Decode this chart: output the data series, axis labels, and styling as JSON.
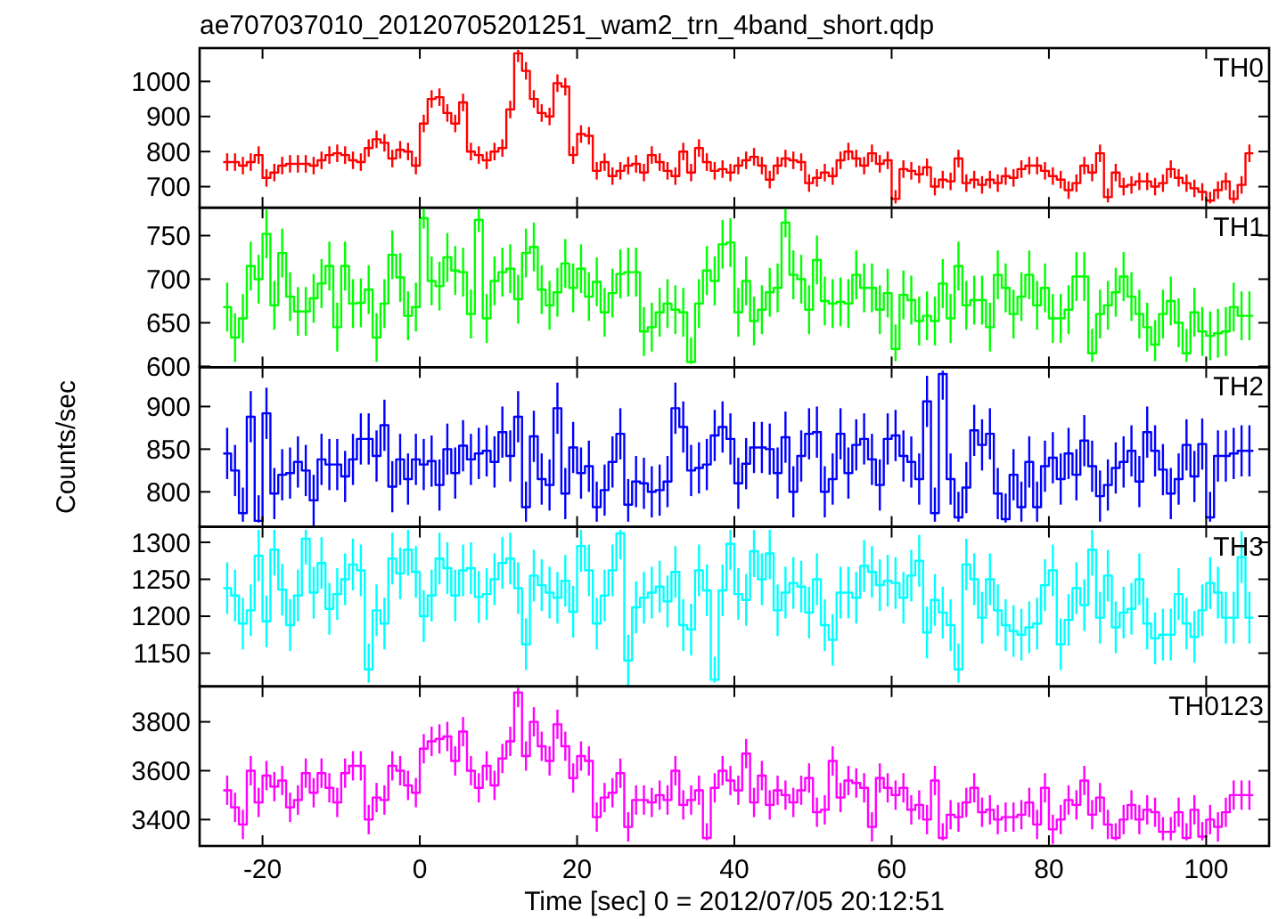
{
  "chart_data": [
    {
      "type": "step",
      "title": "ae707037010_20120705201251_wam2_trn_4band_short.qdp",
      "xlim": [
        -28,
        108
      ],
      "xticks": [
        -20,
        0,
        20,
        40,
        60,
        80,
        100
      ],
      "ylim": [
        640,
        1095
      ],
      "yticks": [
        700,
        800,
        900,
        1000
      ],
      "tick_labels": "y",
      "legend": "top right",
      "x": [
        -24.5,
        -23.5,
        -22.5,
        -21.5,
        -20.5,
        -19.5,
        -18.5,
        -17.5,
        -16.5,
        -15.5,
        -14.5,
        -13.5,
        -12.5,
        -11.5,
        -10.5,
        -9.5,
        -8.5,
        -7.5,
        -6.5,
        -5.5,
        -4.5,
        -3.5,
        -2.5,
        -1.5,
        -0.5,
        0.5,
        1.5,
        2.5,
        3.5,
        4.5,
        5.5,
        6.5,
        7.5,
        8.5,
        9.5,
        10.5,
        11.5,
        12.5,
        13.5,
        14.5,
        15.5,
        16.5,
        17.5,
        18.5,
        19.5,
        20.5,
        21.5,
        22.5,
        23.5,
        24.5,
        25.5,
        26.5,
        27.5,
        28.5,
        29.5,
        30.5,
        31.5,
        32.5,
        33.5,
        34.5,
        35.5,
        36.5,
        37.5,
        38.5,
        39.5,
        40.5,
        41.5,
        42.5,
        43.5,
        44.5,
        45.5,
        46.5,
        47.5,
        48.5,
        49.5,
        50.5,
        51.5,
        52.5,
        53.5,
        54.5,
        55.5,
        56.5,
        57.5,
        58.5,
        59.5,
        60.5,
        61.5,
        62.5,
        63.5,
        64.5,
        65.5,
        66.5,
        67.5,
        68.5,
        69.5,
        70.5,
        71.5,
        72.5,
        73.5,
        74.5,
        75.5,
        76.5,
        77.5,
        78.5,
        79.5,
        80.5,
        81.5,
        82.5,
        83.5,
        84.5,
        85.5,
        86.5,
        87.5,
        88.5,
        89.5,
        90.5,
        91.5,
        92.5,
        93.5,
        94.5,
        95.5,
        96.5,
        97.5,
        98.5,
        99.5,
        100.5,
        101.5,
        102.5,
        103.5,
        104.5,
        105.5
      ],
      "series": [
        {
          "name": "TH0",
          "color": "#ff0000",
          "values": [
            770,
            770,
            760,
            770,
            790,
            725,
            740,
            760,
            765,
            765,
            765,
            760,
            775,
            790,
            795,
            790,
            775,
            770,
            810,
            835,
            825,
            780,
            805,
            800,
            760,
            880,
            950,
            955,
            910,
            880,
            940,
            800,
            790,
            775,
            800,
            810,
            920,
            1080,
            1030,
            950,
            910,
            900,
            995,
            985,
            790,
            850,
            845,
            745,
            770,
            730,
            745,
            760,
            765,
            740,
            790,
            770,
            745,
            730,
            800,
            740,
            810,
            770,
            745,
            750,
            740,
            760,
            775,
            785,
            760,
            720,
            760,
            780,
            775,
            770,
            710,
            725,
            740,
            730,
            775,
            800,
            780,
            760,
            795,
            765,
            775,
            665,
            750,
            745,
            735,
            755,
            700,
            720,
            715,
            780,
            710,
            720,
            705,
            720,
            710,
            730,
            725,
            750,
            760,
            760,
            745,
            730,
            720,
            690,
            710,
            760,
            740,
            795,
            670,
            740,
            700,
            705,
            715,
            715,
            700,
            710,
            750,
            725,
            710,
            695,
            685,
            660,
            690,
            715,
            665,
            705,
            795
          ],
          "errors": [
            25,
            25,
            25,
            25,
            25,
            25,
            25,
            25,
            25,
            25,
            25,
            25,
            25,
            25,
            25,
            25,
            25,
            25,
            25,
            25,
            25,
            25,
            25,
            25,
            25,
            25,
            25,
            25,
            25,
            25,
            25,
            25,
            25,
            25,
            25,
            25,
            25,
            [
              1055,
              1090
            ],
            25,
            25,
            25,
            25,
            25,
            25,
            25,
            25,
            25,
            25,
            25,
            25,
            25,
            25,
            25,
            25,
            25,
            25,
            25,
            25,
            25,
            25,
            25,
            25,
            25,
            25,
            25,
            25,
            25,
            25,
            25,
            25,
            25,
            25,
            25,
            25,
            25,
            25,
            25,
            25,
            25,
            25,
            25,
            25,
            25,
            25,
            25,
            [
              652,
              690
            ],
            25,
            25,
            25,
            25,
            25,
            25,
            25,
            25,
            25,
            25,
            25,
            25,
            25,
            25,
            25,
            25,
            25,
            25,
            25,
            25,
            25,
            25,
            25,
            25,
            25,
            25,
            [
              655,
              695
            ],
            25,
            25,
            25,
            25,
            25,
            25,
            25,
            25,
            25,
            25,
            25,
            25,
            [
              652,
              685
            ],
            25,
            25,
            [
              652,
              690
            ],
            25,
            25
          ]
        }
      ]
    },
    {
      "type": "step",
      "xlim": [
        -28,
        108
      ],
      "xticks": [
        -20,
        0,
        20,
        40,
        60,
        80,
        100
      ],
      "ylim": [
        599,
        782
      ],
      "yticks": [
        600,
        650,
        700,
        750
      ],
      "tick_labels": "y",
      "legend": "top right",
      "x": [
        -24.5,
        -23.5,
        -22.5,
        -21.5,
        -20.5,
        -19.5,
        -18.5,
        -17.5,
        -16.5,
        -15.5,
        -14.5,
        -13.5,
        -12.5,
        -11.5,
        -10.5,
        -9.5,
        -8.5,
        -7.5,
        -6.5,
        -5.5,
        -4.5,
        -3.5,
        -2.5,
        -1.5,
        -0.5,
        0.5,
        1.5,
        2.5,
        3.5,
        4.5,
        5.5,
        6.5,
        7.5,
        8.5,
        9.5,
        10.5,
        11.5,
        12.5,
        13.5,
        14.5,
        15.5,
        16.5,
        17.5,
        18.5,
        19.5,
        20.5,
        21.5,
        22.5,
        23.5,
        24.5,
        25.5,
        26.5,
        27.5,
        28.5,
        29.5,
        30.5,
        31.5,
        32.5,
        33.5,
        34.5,
        35.5,
        36.5,
        37.5,
        38.5,
        39.5,
        40.5,
        41.5,
        42.5,
        43.5,
        44.5,
        45.5,
        46.5,
        47.5,
        48.5,
        49.5,
        50.5,
        51.5,
        52.5,
        53.5,
        54.5,
        55.5,
        56.5,
        57.5,
        58.5,
        59.5,
        60.5,
        61.5,
        62.5,
        63.5,
        64.5,
        65.5,
        66.5,
        67.5,
        68.5,
        69.5,
        70.5,
        71.5,
        72.5,
        73.5,
        74.5,
        75.5,
        76.5,
        77.5,
        78.5,
        79.5,
        80.5,
        81.5,
        82.5,
        83.5,
        84.5,
        85.5,
        86.5,
        87.5,
        88.5,
        89.5,
        90.5,
        91.5,
        92.5,
        93.5,
        94.5,
        95.5,
        96.5,
        97.5,
        98.5,
        99.5,
        100.5,
        101.5,
        102.5,
        103.5,
        104.5,
        105.5
      ],
      "series": [
        {
          "name": "TH1",
          "color": "#00ff00",
          "values": [
            668,
            633,
            655,
            715,
            700,
            752,
            670,
            730,
            680,
            663,
            663,
            678,
            695,
            715,
            645,
            715,
            672,
            673,
            688,
            633,
            672,
            728,
            702,
            658,
            668,
            770,
            698,
            692,
            725,
            710,
            708,
            660,
            768,
            655,
            698,
            708,
            712,
            677,
            730,
            737,
            688,
            670,
            685,
            718,
            690,
            712,
            680,
            697,
            662,
            684,
            706,
            708,
            708,
            640,
            645,
            662,
            672,
            665,
            662,
            605,
            672,
            710,
            698,
            740,
            742,
            662,
            698,
            652,
            665,
            685,
            690,
            765,
            705,
            700,
            665,
            722,
            675,
            672,
            674,
            672,
            705,
            690,
            690,
            665,
            684,
            620,
            682,
            676,
            652,
            658,
            652,
            695,
            655,
            715,
            670,
            676,
            676,
            645,
            705,
            690,
            660,
            680,
            705,
            670,
            690,
            655,
            655,
            665,
            703,
            703,
            615,
            660,
            670,
            685,
            703,
            680,
            660,
            645,
            625,
            660,
            675,
            650,
            615,
            662,
            640,
            635,
            638,
            640,
            668,
            658,
            658
          ],
          "errors": [
            28,
            28,
            28,
            28,
            28,
            28,
            28,
            28,
            28,
            28,
            28,
            28,
            28,
            28,
            28,
            28,
            28,
            28,
            28,
            28,
            28,
            28,
            28,
            28,
            28,
            12,
            28,
            28,
            28,
            28,
            28,
            28,
            14,
            28,
            28,
            28,
            28,
            28,
            28,
            28,
            28,
            28,
            28,
            28,
            28,
            28,
            28,
            28,
            28,
            28,
            28,
            28,
            28,
            28,
            28,
            28,
            28,
            28,
            28,
            [
              603,
              633
            ],
            28,
            28,
            28,
            28,
            28,
            28,
            28,
            28,
            28,
            28,
            28,
            17,
            28,
            28,
            28,
            28,
            28,
            28,
            28,
            28,
            28,
            28,
            28,
            28,
            28,
            [
              606,
              648
            ],
            28,
            28,
            28,
            28,
            28,
            28,
            28,
            28,
            28,
            28,
            28,
            28,
            28,
            28,
            28,
            28,
            28,
            28,
            28,
            28,
            28,
            28,
            28,
            28,
            [
              605,
              643
            ],
            28,
            28,
            28,
            28,
            28,
            28,
            28,
            [
              606,
              653
            ],
            28,
            28,
            28,
            [
              605,
              643
            ],
            28,
            28,
            28,
            28,
            28,
            28,
            28,
            28
          ]
        }
      ]
    },
    {
      "type": "step",
      "ylabel": "Counts/sec",
      "xlim": [
        -28,
        108
      ],
      "xticks": [
        -20,
        0,
        20,
        40,
        60,
        80,
        100
      ],
      "ylim": [
        759,
        946
      ],
      "yticks": [
        800,
        850,
        900
      ],
      "tick_labels": "y",
      "legend": "top right",
      "x": [
        -24.5,
        -23.5,
        -22.5,
        -21.5,
        -20.5,
        -19.5,
        -18.5,
        -17.5,
        -16.5,
        -15.5,
        -14.5,
        -13.5,
        -12.5,
        -11.5,
        -10.5,
        -9.5,
        -8.5,
        -7.5,
        -6.5,
        -5.5,
        -4.5,
        -3.5,
        -2.5,
        -1.5,
        -0.5,
        0.5,
        1.5,
        2.5,
        3.5,
        4.5,
        5.5,
        6.5,
        7.5,
        8.5,
        9.5,
        10.5,
        11.5,
        12.5,
        13.5,
        14.5,
        15.5,
        16.5,
        17.5,
        18.5,
        19.5,
        20.5,
        21.5,
        22.5,
        23.5,
        24.5,
        25.5,
        26.5,
        27.5,
        28.5,
        29.5,
        30.5,
        31.5,
        32.5,
        33.5,
        34.5,
        35.5,
        36.5,
        37.5,
        38.5,
        39.5,
        40.5,
        41.5,
        42.5,
        43.5,
        44.5,
        45.5,
        46.5,
        47.5,
        48.5,
        49.5,
        50.5,
        51.5,
        52.5,
        53.5,
        54.5,
        55.5,
        56.5,
        57.5,
        58.5,
        59.5,
        60.5,
        61.5,
        62.5,
        63.5,
        64.5,
        65.5,
        66.5,
        67.5,
        68.5,
        69.5,
        70.5,
        71.5,
        72.5,
        73.5,
        74.5,
        75.5,
        76.5,
        77.5,
        78.5,
        79.5,
        80.5,
        81.5,
        82.5,
        83.5,
        84.5,
        85.5,
        86.5,
        87.5,
        88.5,
        89.5,
        90.5,
        91.5,
        92.5,
        93.5,
        94.5,
        95.5,
        96.5,
        97.5,
        98.5,
        99.5,
        100.5,
        101.5,
        102.5,
        103.5,
        104.5,
        105.5
      ],
      "series": [
        {
          "name": "TH2",
          "color": "#0000ff",
          "values": [
            845,
            825,
            775,
            888,
            766,
            892,
            798,
            820,
            822,
            835,
            825,
            790,
            838,
            832,
            832,
            818,
            838,
            862,
            862,
            842,
            878,
            806,
            838,
            815,
            838,
            832,
            836,
            808,
            850,
            822,
            854,
            838,
            845,
            848,
            835,
            870,
            842,
            888,
            782,
            865,
            815,
            808,
            898,
            798,
            852,
            822,
            830,
            782,
            802,
            835,
            868,
            785,
            812,
            810,
            800,
            802,
            812,
            898,
            876,
            825,
            828,
            832,
            866,
            876,
            862,
            810,
            833,
            852,
            852,
            850,
            822,
            864,
            800,
            842,
            868,
            870,
            800,
            815,
            868,
            822,
            855,
            862,
            838,
            808,
            862,
            866,
            842,
            835,
            815,
            906,
            775,
            938,
            815,
            770,
            805,
            872,
            855,
            868,
            798,
            768,
            820,
            782,
            835,
            782,
            830,
            840,
            815,
            845,
            820,
            860,
            830,
            795,
            808,
            828,
            835,
            848,
            812,
            870,
            848,
            826,
            798,
            815,
            855,
            818,
            856,
            770,
            842,
            842,
            845,
            848,
            848
          ],
          "errors": [
            30,
            30,
            [
              765,
              805
            ],
            30,
            [
              764,
              796
            ],
            30,
            30,
            30,
            30,
            30,
            30,
            30,
            30,
            30,
            30,
            30,
            30,
            30,
            30,
            30,
            30,
            30,
            30,
            30,
            30,
            30,
            30,
            30,
            30,
            30,
            30,
            30,
            30,
            30,
            30,
            30,
            30,
            30,
            [
              765,
              812
            ],
            30,
            30,
            30,
            30,
            30,
            30,
            30,
            30,
            [
              765,
              812
            ],
            30,
            30,
            30,
            [
              765,
              815
            ],
            30,
            30,
            30,
            30,
            30,
            30,
            30,
            30,
            30,
            30,
            30,
            30,
            30,
            30,
            30,
            30,
            30,
            30,
            30,
            30,
            30,
            30,
            30,
            30,
            30,
            30,
            30,
            30,
            30,
            30,
            30,
            30,
            30,
            30,
            30,
            30,
            30,
            30,
            [
              765,
              805
            ],
            [
              908,
              942
            ],
            30,
            [
              765,
              800
            ],
            30,
            30,
            30,
            30,
            30,
            [
              764,
              798
            ],
            30,
            [
              765,
              812
            ],
            30,
            [
              765,
              812
            ],
            30,
            30,
            30,
            30,
            30,
            30,
            30,
            30,
            30,
            30,
            30,
            30,
            30,
            30,
            30,
            30,
            30,
            30,
            30,
            30,
            30,
            [
              765,
              800
            ],
            30,
            30,
            30,
            30,
            30
          ]
        }
      ]
    },
    {
      "type": "step",
      "xlim": [
        -28,
        108
      ],
      "xticks": [
        -20,
        0,
        20,
        40,
        60,
        80,
        100
      ],
      "ylim": [
        1105,
        1321
      ],
      "yticks": [
        1150,
        1200,
        1250,
        1300
      ],
      "tick_labels": "y",
      "legend": "top right",
      "x": [
        -24.5,
        -23.5,
        -22.5,
        -21.5,
        -20.5,
        -19.5,
        -18.5,
        -17.5,
        -16.5,
        -15.5,
        -14.5,
        -13.5,
        -12.5,
        -11.5,
        -10.5,
        -9.5,
        -8.5,
        -7.5,
        -6.5,
        -5.5,
        -4.5,
        -3.5,
        -2.5,
        -1.5,
        -0.5,
        0.5,
        1.5,
        2.5,
        3.5,
        4.5,
        5.5,
        6.5,
        7.5,
        8.5,
        9.5,
        10.5,
        11.5,
        12.5,
        13.5,
        14.5,
        15.5,
        16.5,
        17.5,
        18.5,
        19.5,
        20.5,
        21.5,
        22.5,
        23.5,
        24.5,
        25.5,
        26.5,
        27.5,
        28.5,
        29.5,
        30.5,
        31.5,
        32.5,
        33.5,
        34.5,
        35.5,
        36.5,
        37.5,
        38.5,
        39.5,
        40.5,
        41.5,
        42.5,
        43.5,
        44.5,
        45.5,
        46.5,
        47.5,
        48.5,
        49.5,
        50.5,
        51.5,
        52.5,
        53.5,
        54.5,
        55.5,
        56.5,
        57.5,
        58.5,
        59.5,
        60.5,
        61.5,
        62.5,
        63.5,
        64.5,
        65.5,
        66.5,
        67.5,
        68.5,
        69.5,
        70.5,
        71.5,
        72.5,
        73.5,
        74.5,
        75.5,
        76.5,
        77.5,
        78.5,
        79.5,
        80.5,
        81.5,
        82.5,
        83.5,
        84.5,
        85.5,
        86.5,
        87.5,
        88.5,
        89.5,
        90.5,
        91.5,
        92.5,
        93.5,
        94.5,
        95.5,
        96.5,
        97.5,
        98.5,
        99.5,
        100.5,
        101.5,
        102.5,
        103.5,
        104.5,
        105.5
      ],
      "series": [
        {
          "name": "TH3",
          "color": "#00ffff",
          "values": [
            1238,
            1228,
            1190,
            1208,
            1282,
            1193,
            1290,
            1236,
            1188,
            1228,
            1305,
            1232,
            1272,
            1210,
            1230,
            1250,
            1270,
            1262,
            1128,
            1208,
            1190,
            1278,
            1258,
            1290,
            1260,
            1200,
            1228,
            1278,
            1265,
            1228,
            1262,
            1265,
            1226,
            1230,
            1250,
            1272,
            1278,
            1238,
            1162,
            1255,
            1242,
            1232,
            1225,
            1248,
            1206,
            1295,
            1262,
            1190,
            1228,
            1262,
            1312,
            1140,
            1212,
            1225,
            1232,
            1240,
            1220,
            1260,
            1188,
            1182,
            1262,
            1235,
            1114,
            1235,
            1298,
            1230,
            1222,
            1288,
            1250,
            1285,
            1208,
            1232,
            1245,
            1240,
            1205,
            1250,
            1188,
            1168,
            1232,
            1232,
            1225,
            1268,
            1260,
            1242,
            1248,
            1245,
            1225,
            1255,
            1275,
            1178,
            1222,
            1205,
            1188,
            1128,
            1270,
            1250,
            1198,
            1250,
            1208,
            1188,
            1180,
            1175,
            1185,
            1190,
            1242,
            1262,
            1162,
            1195,
            1238,
            1215,
            1290,
            1198,
            1255,
            1185,
            1205,
            1210,
            1250,
            1190,
            1170,
            1175,
            1175,
            1230,
            1190,
            1172,
            1208,
            1245,
            1232,
            1198,
            1198,
            1280,
            1198
          ],
          "errors": [
            35,
            35,
            35,
            35,
            [
              1247,
              1317
            ],
            35,
            [
              1255,
              1317
            ],
            35,
            35,
            35,
            [
              1270,
              1317
            ],
            35,
            35,
            35,
            35,
            35,
            35,
            35,
            [
              1110,
              1163
            ],
            35,
            35,
            35,
            35,
            [
              1255,
              1317
            ],
            35,
            35,
            35,
            35,
            35,
            35,
            35,
            35,
            35,
            35,
            35,
            35,
            35,
            35,
            35,
            35,
            35,
            35,
            35,
            35,
            35,
            [
              1260,
              1317
            ],
            35,
            35,
            35,
            35,
            [
              1277,
              1317
            ],
            35,
            35,
            35,
            35,
            35,
            35,
            35,
            35,
            35,
            35,
            35,
            [
              1110,
              1145
            ],
            35,
            [
              1263,
              1317
            ],
            35,
            35,
            [
              1253,
              1317
            ],
            35,
            [
              1250,
              1317
            ],
            35,
            35,
            35,
            35,
            35,
            35,
            35,
            35,
            35,
            35,
            35,
            35,
            35,
            35,
            35,
            35,
            35,
            35,
            35,
            35,
            35,
            35,
            35,
            [
              1110,
              1163
            ],
            35,
            35,
            35,
            35,
            35,
            35,
            35,
            35,
            35,
            35,
            35,
            35,
            35,
            35,
            35,
            35,
            [
              1255,
              1317
            ],
            35,
            35,
            35,
            35,
            35,
            35,
            35,
            35,
            35,
            35,
            35,
            35,
            35,
            35,
            35,
            35,
            35,
            35,
            35,
            35
          ]
        }
      ]
    },
    {
      "type": "step",
      "xlabel": "Time [sec] 0 = 2012/07/05 20:12:51",
      "xlim": [
        -28,
        108
      ],
      "xticks": [
        -20,
        0,
        20,
        40,
        60,
        80,
        100
      ],
      "ylim": [
        3292,
        3945
      ],
      "yticks": [
        3400,
        3600,
        3800
      ],
      "legend": "top right",
      "x": [
        -24.5,
        -23.5,
        -22.5,
        -21.5,
        -20.5,
        -19.5,
        -18.5,
        -17.5,
        -16.5,
        -15.5,
        -14.5,
        -13.5,
        -12.5,
        -11.5,
        -10.5,
        -9.5,
        -8.5,
        -7.5,
        -6.5,
        -5.5,
        -4.5,
        -3.5,
        -2.5,
        -1.5,
        -0.5,
        0.5,
        1.5,
        2.5,
        3.5,
        4.5,
        5.5,
        6.5,
        7.5,
        8.5,
        9.5,
        10.5,
        11.5,
        12.5,
        13.5,
        14.5,
        15.5,
        16.5,
        17.5,
        18.5,
        19.5,
        20.5,
        21.5,
        22.5,
        23.5,
        24.5,
        25.5,
        26.5,
        27.5,
        28.5,
        29.5,
        30.5,
        31.5,
        32.5,
        33.5,
        34.5,
        35.5,
        36.5,
        37.5,
        38.5,
        39.5,
        40.5,
        41.5,
        42.5,
        43.5,
        44.5,
        45.5,
        46.5,
        47.5,
        48.5,
        49.5,
        50.5,
        51.5,
        52.5,
        53.5,
        54.5,
        55.5,
        56.5,
        57.5,
        58.5,
        59.5,
        60.5,
        61.5,
        62.5,
        63.5,
        64.5,
        65.5,
        66.5,
        67.5,
        68.5,
        69.5,
        70.5,
        71.5,
        72.5,
        73.5,
        74.5,
        75.5,
        76.5,
        77.5,
        78.5,
        79.5,
        80.5,
        81.5,
        82.5,
        83.5,
        84.5,
        85.5,
        86.5,
        87.5,
        88.5,
        89.5,
        90.5,
        91.5,
        92.5,
        93.5,
        94.5,
        95.5,
        96.5,
        97.5,
        98.5,
        99.5,
        100.5,
        101.5,
        102.5,
        103.5,
        104.5,
        105.5
      ],
      "series": [
        {
          "name": "TH0123",
          "color": "#ff00ff",
          "values": [
            3520,
            3450,
            3380,
            3600,
            3470,
            3580,
            3535,
            3560,
            3450,
            3480,
            3590,
            3510,
            3590,
            3530,
            3470,
            3590,
            3620,
            3620,
            3400,
            3490,
            3480,
            3620,
            3600,
            3540,
            3510,
            3690,
            3720,
            3730,
            3740,
            3640,
            3760,
            3600,
            3530,
            3620,
            3540,
            3650,
            3720,
            3920,
            3660,
            3800,
            3700,
            3640,
            3790,
            3700,
            3570,
            3660,
            3640,
            3410,
            3490,
            3510,
            3590,
            3370,
            3480,
            3480,
            3470,
            3500,
            3480,
            3600,
            3460,
            3480,
            3520,
            3325,
            3530,
            3600,
            3560,
            3520,
            3670,
            3470,
            3580,
            3460,
            3520,
            3500,
            3470,
            3520,
            3570,
            3430,
            3440,
            3640,
            3490,
            3560,
            3550,
            3530,
            3370,
            3570,
            3530,
            3500,
            3530,
            3440,
            3460,
            3400,
            3560,
            3325,
            3420,
            3410,
            3470,
            3530,
            3430,
            3440,
            3400,
            3410,
            3410,
            3420,
            3470,
            3380,
            3530,
            3360,
            3400,
            3480,
            3460,
            3560,
            3420,
            3490,
            3380,
            3325,
            3400,
            3460,
            3400,
            3440,
            3430,
            3350,
            3350,
            3430,
            3325,
            3440,
            3330,
            3400,
            3370,
            3430,
            3500,
            3500,
            3500
          ],
          "errors": [
            60,
            60,
            60,
            60,
            60,
            60,
            60,
            60,
            60,
            60,
            60,
            60,
            60,
            60,
            60,
            60,
            60,
            60,
            60,
            60,
            60,
            60,
            60,
            60,
            60,
            60,
            60,
            60,
            60,
            60,
            60,
            60,
            60,
            60,
            60,
            60,
            60,
            [
              3860,
              3940
            ],
            60,
            60,
            60,
            60,
            60,
            60,
            60,
            60,
            60,
            60,
            60,
            60,
            60,
            60,
            60,
            60,
            60,
            60,
            60,
            60,
            60,
            60,
            60,
            [
              3315,
              3385
            ],
            60,
            60,
            60,
            60,
            60,
            60,
            60,
            60,
            60,
            60,
            60,
            60,
            60,
            60,
            60,
            60,
            60,
            60,
            60,
            60,
            60,
            60,
            60,
            60,
            60,
            60,
            60,
            60,
            60,
            [
              3315,
              3385
            ],
            60,
            60,
            60,
            60,
            60,
            60,
            60,
            60,
            60,
            60,
            60,
            60,
            60,
            [
              3300,
              3420
            ],
            60,
            60,
            60,
            60,
            60,
            60,
            60,
            [
              3315,
              3385
            ],
            60,
            60,
            60,
            60,
            60,
            [
              3315,
              3410
            ],
            [
              3315,
              3410
            ],
            60,
            [
              3315,
              3385
            ],
            60,
            [
              3315,
              3390
            ],
            60,
            60,
            60,
            60,
            60,
            60
          ]
        }
      ]
    }
  ]
}
